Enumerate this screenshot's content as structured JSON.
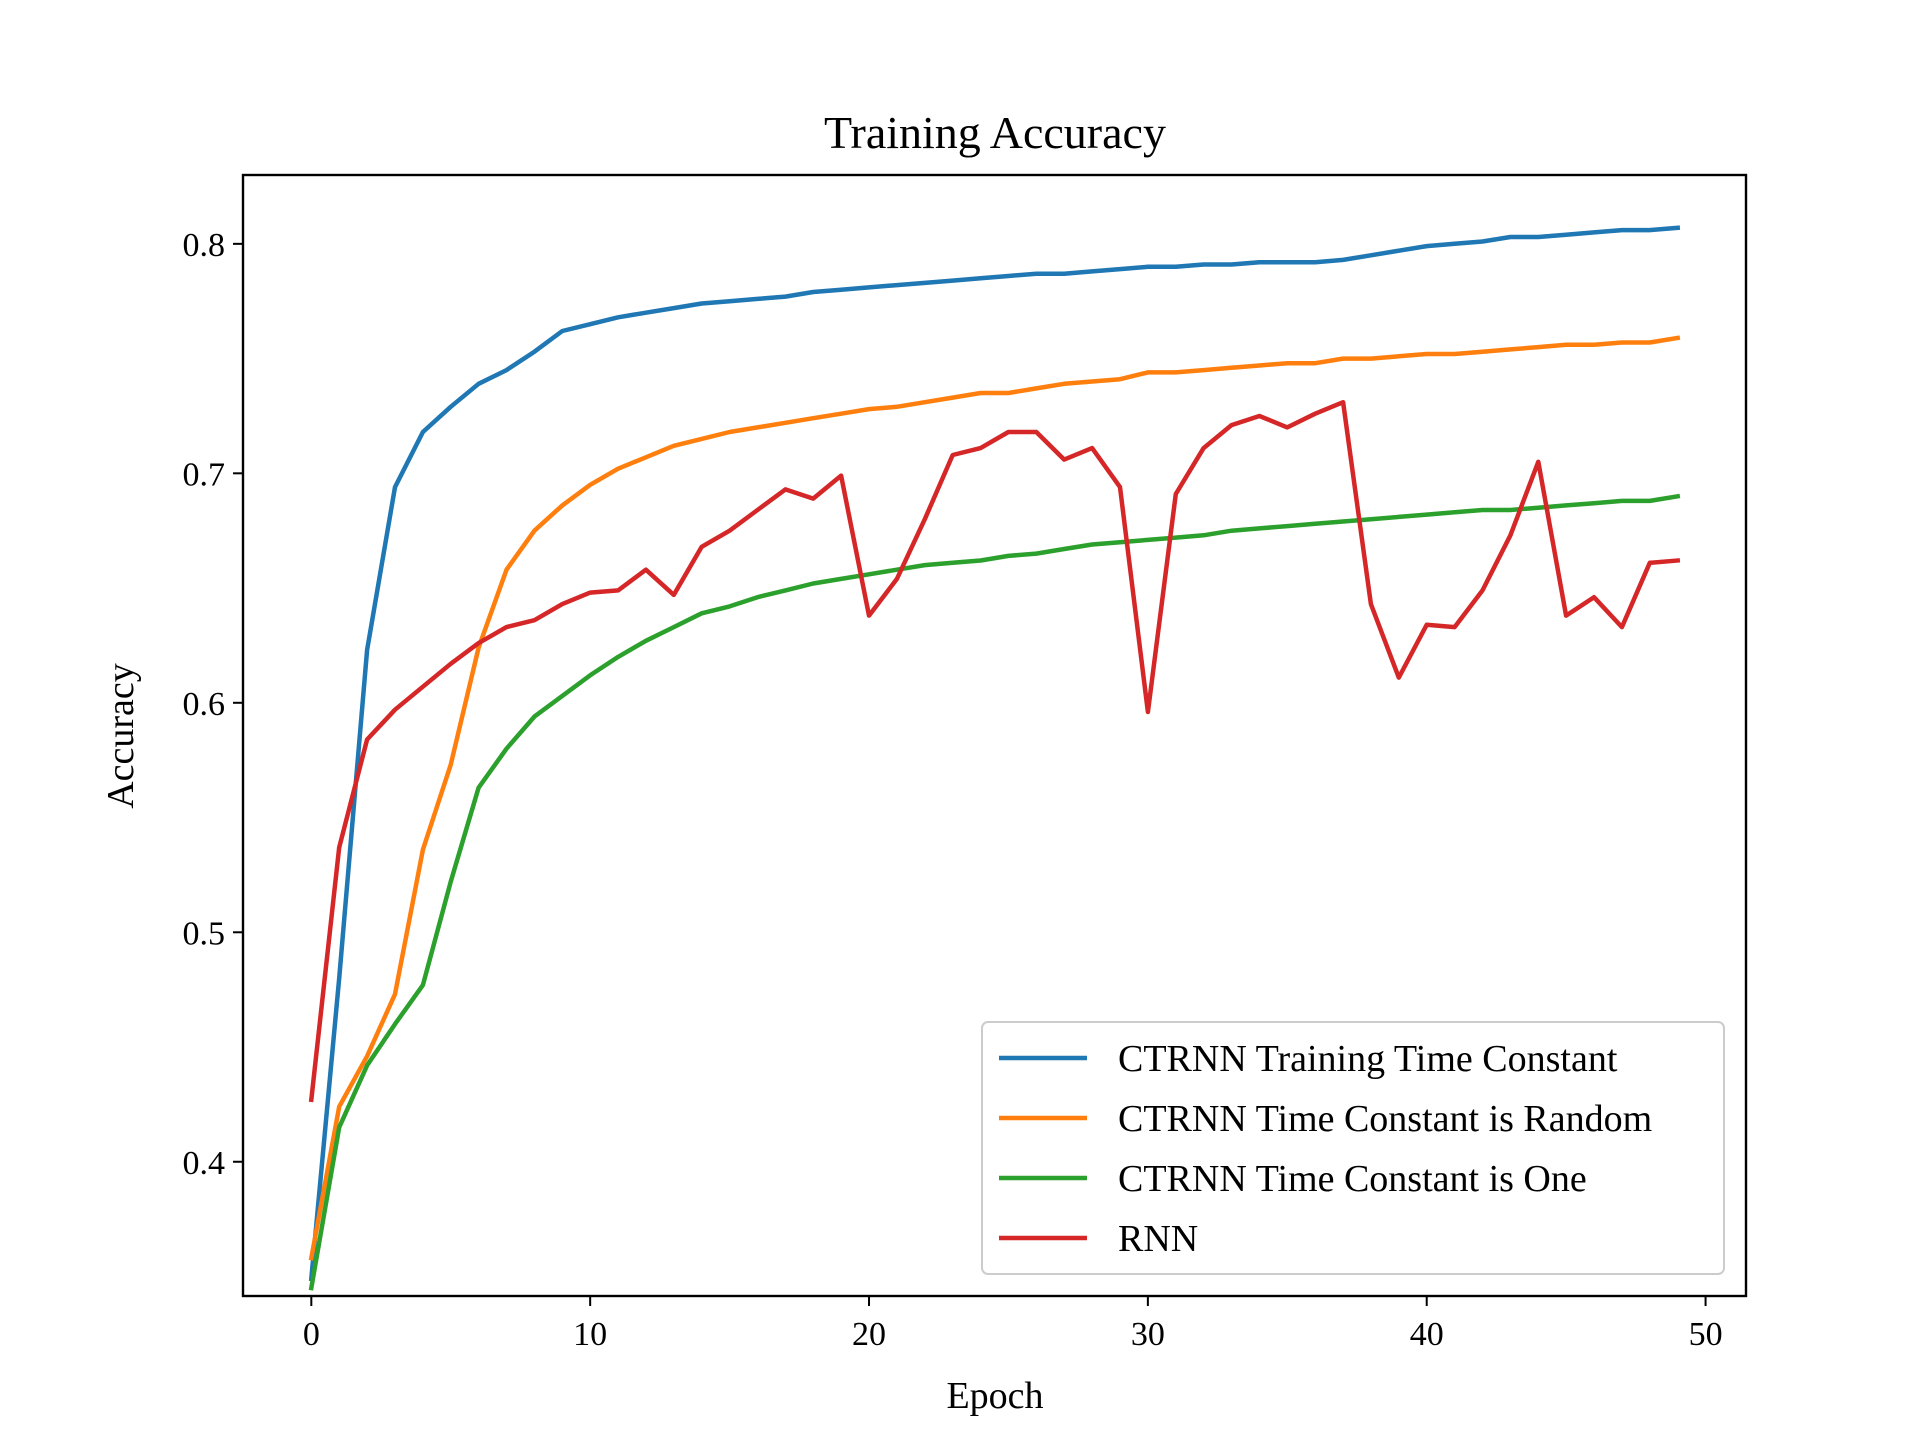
{
  "chart_data": {
    "type": "line",
    "title": "Training Accuracy",
    "xlabel": "Epoch",
    "ylabel": "Accuracy",
    "xlim": [
      -2.45,
      51.45
    ],
    "ylim": [
      0.3415,
      0.83
    ],
    "xticks": [
      0,
      10,
      20,
      30,
      40,
      50
    ],
    "yticks": [
      0.4,
      0.5,
      0.6,
      0.7,
      0.8
    ],
    "xtick_labels": [
      "0",
      "10",
      "20",
      "30",
      "40",
      "50"
    ],
    "ytick_labels": [
      "0.4",
      "0.5",
      "0.6",
      "0.7",
      "0.8"
    ],
    "grid": false,
    "legend_position": "lower-right",
    "x": [
      0,
      1,
      2,
      3,
      4,
      5,
      6,
      7,
      8,
      9,
      10,
      11,
      12,
      13,
      14,
      15,
      16,
      17,
      18,
      19,
      20,
      21,
      22,
      23,
      24,
      25,
      26,
      27,
      28,
      29,
      30,
      31,
      32,
      33,
      34,
      35,
      36,
      37,
      38,
      39,
      40,
      41,
      42,
      43,
      44,
      45,
      46,
      47,
      48,
      49
    ],
    "series": [
      {
        "name": "CTRNN Training Time Constant",
        "color": "#1f77b4",
        "values": [
          0.349,
          0.48,
          0.623,
          0.694,
          0.718,
          0.729,
          0.739,
          0.745,
          0.753,
          0.762,
          0.765,
          0.768,
          0.77,
          0.772,
          0.774,
          0.775,
          0.776,
          0.777,
          0.779,
          0.78,
          0.781,
          0.782,
          0.783,
          0.784,
          0.785,
          0.786,
          0.787,
          0.787,
          0.788,
          0.789,
          0.79,
          0.79,
          0.791,
          0.791,
          0.792,
          0.792,
          0.792,
          0.793,
          0.795,
          0.797,
          0.799,
          0.8,
          0.801,
          0.803,
          0.803,
          0.804,
          0.805,
          0.806,
          0.806,
          0.807
        ]
      },
      {
        "name": "CTRNN Time Constant is Random",
        "color": "#ff7f0e",
        "values": [
          0.358,
          0.424,
          0.446,
          0.473,
          0.536,
          0.573,
          0.624,
          0.658,
          0.675,
          0.686,
          0.695,
          0.702,
          0.707,
          0.712,
          0.715,
          0.718,
          0.72,
          0.722,
          0.724,
          0.726,
          0.728,
          0.729,
          0.731,
          0.733,
          0.735,
          0.735,
          0.737,
          0.739,
          0.74,
          0.741,
          0.744,
          0.744,
          0.745,
          0.746,
          0.747,
          0.748,
          0.748,
          0.75,
          0.75,
          0.751,
          0.752,
          0.752,
          0.753,
          0.754,
          0.755,
          0.756,
          0.756,
          0.757,
          0.757,
          0.759
        ]
      },
      {
        "name": "CTRNN Time Constant is One",
        "color": "#2ca02c",
        "values": [
          0.345,
          0.415,
          0.442,
          0.46,
          0.477,
          0.522,
          0.563,
          0.58,
          0.594,
          0.603,
          0.612,
          0.62,
          0.627,
          0.633,
          0.639,
          0.642,
          0.646,
          0.649,
          0.652,
          0.654,
          0.656,
          0.658,
          0.66,
          0.661,
          0.662,
          0.664,
          0.665,
          0.667,
          0.669,
          0.67,
          0.671,
          0.672,
          0.673,
          0.675,
          0.676,
          0.677,
          0.678,
          0.679,
          0.68,
          0.681,
          0.682,
          0.683,
          0.684,
          0.684,
          0.685,
          0.686,
          0.687,
          0.688,
          0.688,
          0.69
        ]
      },
      {
        "name": "RNN",
        "color": "#d62728",
        "values": [
          0.427,
          0.537,
          0.584,
          0.597,
          0.607,
          0.617,
          0.626,
          0.633,
          0.636,
          0.643,
          0.648,
          0.649,
          0.658,
          0.647,
          0.668,
          0.675,
          0.684,
          0.693,
          0.689,
          0.699,
          0.638,
          0.654,
          0.68,
          0.708,
          0.711,
          0.718,
          0.718,
          0.706,
          0.711,
          0.694,
          0.596,
          0.691,
          0.711,
          0.721,
          0.725,
          0.72,
          0.726,
          0.731,
          0.643,
          0.611,
          0.634,
          0.633,
          0.649,
          0.673,
          0.705,
          0.638,
          0.646,
          0.633,
          0.661,
          0.662
        ]
      }
    ]
  }
}
